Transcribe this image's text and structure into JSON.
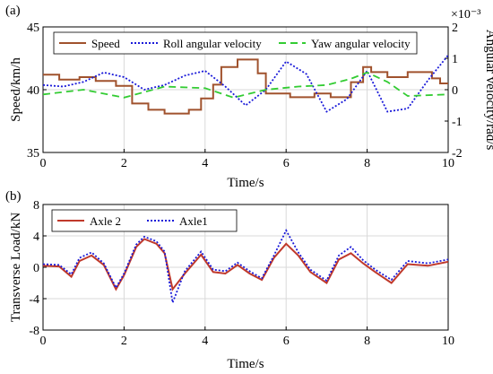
{
  "chart_data": [
    {
      "type": "line",
      "panel_label": "(a)",
      "xlabel": "Time/s",
      "xlim": [
        0,
        10
      ],
      "xticks": [
        "0",
        "2",
        "4",
        "6",
        "8",
        "10"
      ],
      "ylabel_left": "Speed/km/h",
      "ylim_left": [
        35,
        45
      ],
      "yticks_left": [
        "35",
        "40",
        "45"
      ],
      "ylabel_right": "Angular velocity/rad/s",
      "right_exponent": "×10⁻³",
      "ylim_right": [
        -2,
        2
      ],
      "yticks_right": [
        "-2",
        "-1",
        "0",
        "1",
        "2"
      ],
      "grid": true,
      "legend_position": "top",
      "series": [
        {
          "name": "Speed",
          "axis": "left",
          "color": "#a0522d",
          "style": "solid",
          "points": [
            [
              0,
              41.2
            ],
            [
              0.4,
              41.2
            ],
            [
              0.4,
              40.8
            ],
            [
              0.9,
              40.8
            ],
            [
              0.9,
              41.0
            ],
            [
              1.3,
              41.0
            ],
            [
              1.3,
              40.7
            ],
            [
              1.8,
              40.7
            ],
            [
              1.8,
              40.3
            ],
            [
              2.2,
              40.3
            ],
            [
              2.2,
              38.9
            ],
            [
              2.6,
              38.9
            ],
            [
              2.6,
              38.4
            ],
            [
              3.0,
              38.4
            ],
            [
              3.0,
              38.1
            ],
            [
              3.6,
              38.1
            ],
            [
              3.6,
              38.4
            ],
            [
              3.9,
              38.4
            ],
            [
              3.9,
              39.3
            ],
            [
              4.2,
              39.3
            ],
            [
              4.2,
              40.4
            ],
            [
              4.4,
              40.4
            ],
            [
              4.4,
              41.8
            ],
            [
              4.8,
              41.8
            ],
            [
              4.8,
              42.4
            ],
            [
              5.3,
              42.4
            ],
            [
              5.3,
              41.3
            ],
            [
              5.5,
              41.3
            ],
            [
              5.5,
              39.7
            ],
            [
              6.1,
              39.7
            ],
            [
              6.1,
              39.4
            ],
            [
              6.7,
              39.4
            ],
            [
              6.7,
              39.7
            ],
            [
              7.1,
              39.7
            ],
            [
              7.1,
              39.4
            ],
            [
              7.6,
              39.4
            ],
            [
              7.6,
              40.6
            ],
            [
              7.9,
              40.6
            ],
            [
              7.9,
              41.8
            ],
            [
              8.1,
              41.8
            ],
            [
              8.1,
              41.4
            ],
            [
              8.5,
              41.4
            ],
            [
              8.5,
              41.0
            ],
            [
              9.0,
              41.0
            ],
            [
              9.0,
              41.4
            ],
            [
              9.6,
              41.4
            ],
            [
              9.6,
              40.9
            ],
            [
              9.8,
              40.9
            ],
            [
              9.8,
              40.5
            ],
            [
              10,
              40.5
            ]
          ]
        },
        {
          "name": "Roll angular velocity",
          "axis": "right",
          "color": "#1a1ad9",
          "style": "dotted",
          "points": [
            [
              0,
              0.15
            ],
            [
              0.5,
              0.1
            ],
            [
              1.0,
              0.25
            ],
            [
              1.5,
              0.55
            ],
            [
              2.0,
              0.4
            ],
            [
              2.5,
              0.0
            ],
            [
              3.0,
              0.15
            ],
            [
              3.5,
              0.45
            ],
            [
              4.0,
              0.6
            ],
            [
              4.5,
              0.1
            ],
            [
              5.0,
              -0.5
            ],
            [
              5.5,
              0.0
            ],
            [
              6.0,
              0.9
            ],
            [
              6.5,
              0.5
            ],
            [
              7.0,
              -0.7
            ],
            [
              7.5,
              -0.3
            ],
            [
              8.0,
              0.6
            ],
            [
              8.5,
              -0.7
            ],
            [
              9.0,
              -0.6
            ],
            [
              9.5,
              0.3
            ],
            [
              10.0,
              1.1
            ]
          ]
        },
        {
          "name": "Yaw angular velocity",
          "axis": "right",
          "color": "#33cc33",
          "style": "dashed",
          "points": [
            [
              0,
              -0.15
            ],
            [
              1.0,
              0.0
            ],
            [
              2.0,
              -0.25
            ],
            [
              3.0,
              0.1
            ],
            [
              4.0,
              0.05
            ],
            [
              4.7,
              -0.25
            ],
            [
              5.5,
              0.0
            ],
            [
              6.3,
              0.1
            ],
            [
              7.0,
              0.15
            ],
            [
              7.6,
              0.35
            ],
            [
              8.0,
              0.55
            ],
            [
              8.5,
              0.25
            ],
            [
              9.0,
              -0.2
            ],
            [
              10.0,
              -0.15
            ]
          ]
        }
      ]
    },
    {
      "type": "line",
      "panel_label": "(b)",
      "xlabel": "Time/s",
      "xlim": [
        0,
        10
      ],
      "xticks": [
        "0",
        "2",
        "4",
        "6",
        "8",
        "10"
      ],
      "ylabel": "Transverse Load/kN",
      "ylim": [
        -8,
        8
      ],
      "yticks": [
        "-8",
        "-4",
        "0",
        "4",
        "8"
      ],
      "grid": true,
      "legend_position": "top-left",
      "series": [
        {
          "name": "Axle 2",
          "color": "#c0392b",
          "style": "solid",
          "points": [
            [
              0,
              0.2
            ],
            [
              0.4,
              0.1
            ],
            [
              0.7,
              -1.2
            ],
            [
              0.9,
              0.8
            ],
            [
              1.2,
              1.5
            ],
            [
              1.5,
              0.3
            ],
            [
              1.8,
              -2.8
            ],
            [
              2.0,
              -1.0
            ],
            [
              2.3,
              2.6
            ],
            [
              2.5,
              3.6
            ],
            [
              2.8,
              3.0
            ],
            [
              3.0,
              1.8
            ],
            [
              3.2,
              -2.8
            ],
            [
              3.5,
              -0.8
            ],
            [
              3.9,
              1.6
            ],
            [
              4.2,
              -0.6
            ],
            [
              4.5,
              -0.8
            ],
            [
              4.8,
              0.3
            ],
            [
              5.1,
              -0.8
            ],
            [
              5.4,
              -1.6
            ],
            [
              5.7,
              1.2
            ],
            [
              6.0,
              3.0
            ],
            [
              6.3,
              1.5
            ],
            [
              6.6,
              -0.6
            ],
            [
              7.0,
              -2.0
            ],
            [
              7.3,
              1.0
            ],
            [
              7.6,
              1.8
            ],
            [
              7.9,
              0.5
            ],
            [
              8.2,
              -0.6
            ],
            [
              8.6,
              -2.0
            ],
            [
              9.0,
              0.4
            ],
            [
              9.5,
              0.2
            ],
            [
              10.0,
              0.7
            ]
          ]
        },
        {
          "name": "Axle1",
          "color": "#1a1ad9",
          "style": "dotted",
          "points": [
            [
              0,
              0.4
            ],
            [
              0.4,
              0.3
            ],
            [
              0.7,
              -0.9
            ],
            [
              0.9,
              1.2
            ],
            [
              1.2,
              1.9
            ],
            [
              1.5,
              0.5
            ],
            [
              1.8,
              -2.6
            ],
            [
              2.0,
              -0.8
            ],
            [
              2.3,
              2.9
            ],
            [
              2.5,
              3.9
            ],
            [
              2.8,
              3.3
            ],
            [
              3.0,
              2.0
            ],
            [
              3.2,
              -4.5
            ],
            [
              3.5,
              -0.5
            ],
            [
              3.9,
              2.0
            ],
            [
              4.2,
              -0.3
            ],
            [
              4.5,
              -0.5
            ],
            [
              4.8,
              0.6
            ],
            [
              5.1,
              -0.5
            ],
            [
              5.4,
              -1.4
            ],
            [
              5.7,
              1.5
            ],
            [
              6.0,
              4.7
            ],
            [
              6.3,
              1.9
            ],
            [
              6.6,
              -0.3
            ],
            [
              7.0,
              -1.7
            ],
            [
              7.3,
              1.5
            ],
            [
              7.6,
              2.6
            ],
            [
              7.9,
              0.9
            ],
            [
              8.2,
              -0.3
            ],
            [
              8.6,
              -1.6
            ],
            [
              9.0,
              0.8
            ],
            [
              9.5,
              0.5
            ],
            [
              10.0,
              1.0
            ]
          ]
        }
      ]
    }
  ]
}
